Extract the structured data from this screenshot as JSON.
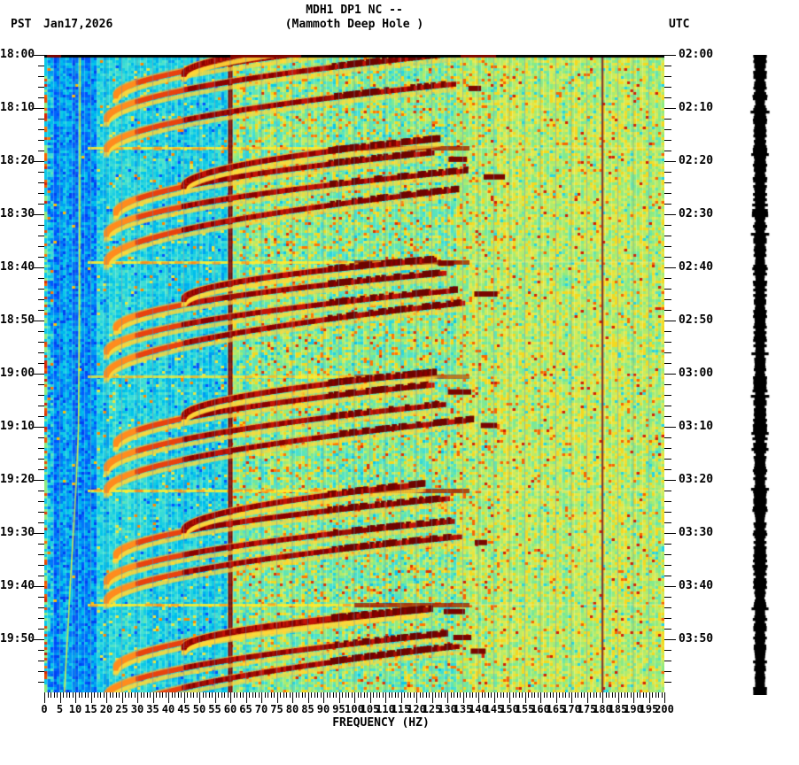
{
  "header": {
    "timezone_left": "PST",
    "date": "Jan17,2026",
    "title_line1": "MDH1 DP1 NC --",
    "title_line2": "(Mammoth Deep Hole )",
    "timezone_right": "UTC"
  },
  "chart_data": {
    "type": "heatmap",
    "subtype": "seismic-spectrogram",
    "title": "MDH1 DP1 NC -- (Mammoth Deep Hole )",
    "xlabel": "FREQUENCY (HZ)",
    "x_axis": {
      "min_hz": 0,
      "max_hz": 200,
      "major_tick_hz": 5,
      "minor_tick_hz": 1,
      "labels": [
        "0",
        "5",
        "10",
        "15",
        "20",
        "25",
        "30",
        "35",
        "40",
        "45",
        "50",
        "55",
        "60",
        "65",
        "70",
        "75",
        "80",
        "85",
        "90",
        "95",
        "100",
        "105",
        "110",
        "115",
        "120",
        "125",
        "130",
        "135",
        "140",
        "145",
        "150",
        "155",
        "160",
        "165",
        "170",
        "175",
        "180",
        "185",
        "190",
        "195",
        "200"
      ]
    },
    "y_axis_left": {
      "timezone": "PST",
      "start": "18:00",
      "end": "20:00",
      "major_tick_min": 10,
      "minor_tick_min": 2,
      "labels": [
        "18:00",
        "18:10",
        "18:20",
        "18:30",
        "18:40",
        "18:50",
        "19:00",
        "19:10",
        "19:20",
        "19:30",
        "19:40",
        "19:50"
      ]
    },
    "y_axis_right": {
      "timezone": "UTC",
      "labels": [
        "02:00",
        "02:10",
        "02:20",
        "02:30",
        "02:40",
        "02:50",
        "03:00",
        "03:10",
        "03:20",
        "03:30",
        "03:40",
        "03:50"
      ]
    },
    "palette": {
      "cold_blue": "#0050ff",
      "cyan_bg": "#35d8e8",
      "green_bg": "#8ce982",
      "yellow": "#ffcd00",
      "orange": "#ff7800",
      "red": "#d22305",
      "dark_red": "#730000",
      "mains_line": "#8b0e00",
      "grid_line": "#6c8ca8",
      "streak_yellow": "#ffeb2d",
      "tone_line": "#cdeb4b",
      "trace_bar": "#000000"
    },
    "features": {
      "noise_seed": 1337,
      "mains_hum_hz": 60,
      "narrow_line_hz": 180,
      "drifting_tone_min_hz": [
        [
          0,
          11.5
        ],
        [
          50,
          11.3
        ],
        [
          70,
          11.0
        ],
        [
          80,
          10.3
        ],
        [
          90,
          9.3
        ],
        [
          100,
          8.3
        ],
        [
          110,
          7.4
        ],
        [
          120,
          6.4
        ]
      ],
      "event_streaks_min": [
        [
          17.5,
          1.0
        ],
        [
          39,
          1.0
        ],
        [
          60.5,
          0.7
        ],
        [
          82,
          1.0
        ],
        [
          103.5,
          1.0
        ]
      ],
      "glide_arcs": [
        [
          17.5,
          20,
          134,
          13
        ],
        [
          13,
          20,
          132,
          12
        ],
        [
          8.5,
          23,
          128,
          11
        ],
        [
          3.5,
          45,
          126,
          8
        ],
        [
          39,
          20,
          134,
          13
        ],
        [
          34.5,
          20,
          132,
          12
        ],
        [
          30,
          23,
          128,
          11
        ],
        [
          25,
          45,
          126,
          8
        ],
        [
          60.5,
          20,
          134,
          13
        ],
        [
          56,
          20,
          132,
          12
        ],
        [
          51.5,
          23,
          128,
          11
        ],
        [
          46.5,
          45,
          126,
          8
        ],
        [
          82,
          20,
          134,
          13
        ],
        [
          77.5,
          20,
          132,
          12
        ],
        [
          73,
          23,
          128,
          11
        ],
        [
          68,
          45,
          126,
          8
        ],
        [
          103.5,
          20,
          134,
          13
        ],
        [
          99,
          20,
          132,
          12
        ],
        [
          94.5,
          23,
          128,
          11
        ],
        [
          89.5,
          45,
          126,
          8
        ],
        [
          125,
          20,
          134,
          13
        ],
        [
          120.5,
          20,
          132,
          12
        ],
        [
          116,
          23,
          128,
          11
        ],
        [
          111,
          45,
          126,
          8
        ]
      ]
    }
  }
}
